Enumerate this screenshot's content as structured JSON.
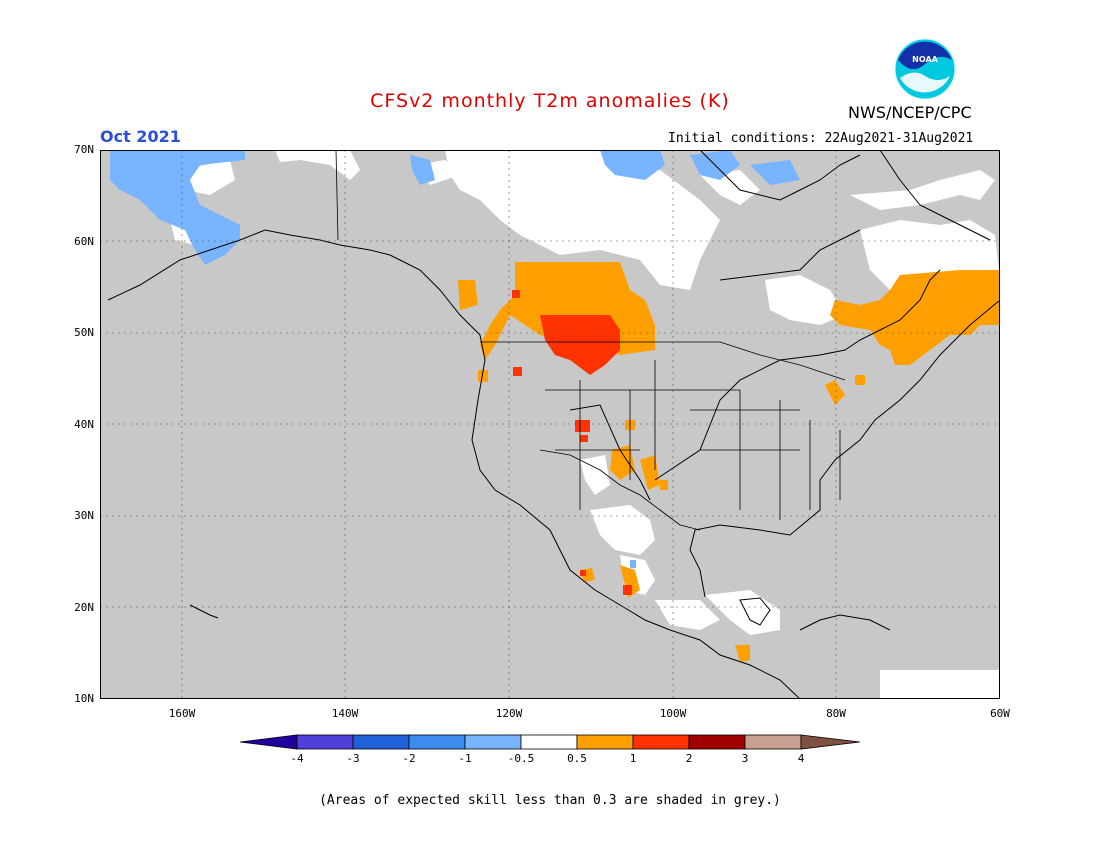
{
  "header": {
    "title": "CFSv2 monthly T2m anomalies (K)",
    "agency": "NWS/NCEP/CPC",
    "logo_text": "NOAA",
    "month": "Oct 2021",
    "initial_conditions": "Initial conditions: 22Aug2021-31Aug2021"
  },
  "map": {
    "projection": "lat-lon",
    "lon_range": [
      -170,
      -60
    ],
    "lat_range": [
      10,
      70
    ],
    "lat_labels": [
      "70N",
      "60N",
      "50N",
      "40N",
      "30N",
      "20N",
      "10N"
    ],
    "lon_labels": [
      "160W",
      "140W",
      "120W",
      "100W",
      "80W",
      "60W"
    ],
    "colors": {
      "land_background": "#c8c8c8",
      "ocean": "#c8c8c8",
      "white": "#ffffff",
      "orange": "#ffa000",
      "red": "#ff3200",
      "light_blue": "#78b4ff",
      "coastline": "#000000",
      "grid": "#555555"
    }
  },
  "colorbar": {
    "labels": [
      "-4",
      "-3",
      "-2",
      "-1",
      "-0.5",
      "0.5",
      "1",
      "2",
      "3",
      "4"
    ],
    "colors": [
      "#2200a0",
      "#5040d8",
      "#2060d8",
      "#3c8cf0",
      "#78b4ff",
      "#ffffff",
      "#ffa000",
      "#ff3200",
      "#a00000",
      "#c8a090",
      "#805040"
    ]
  },
  "footnote": "(Areas of expected skill less than 0.3 are shaded in grey.)"
}
